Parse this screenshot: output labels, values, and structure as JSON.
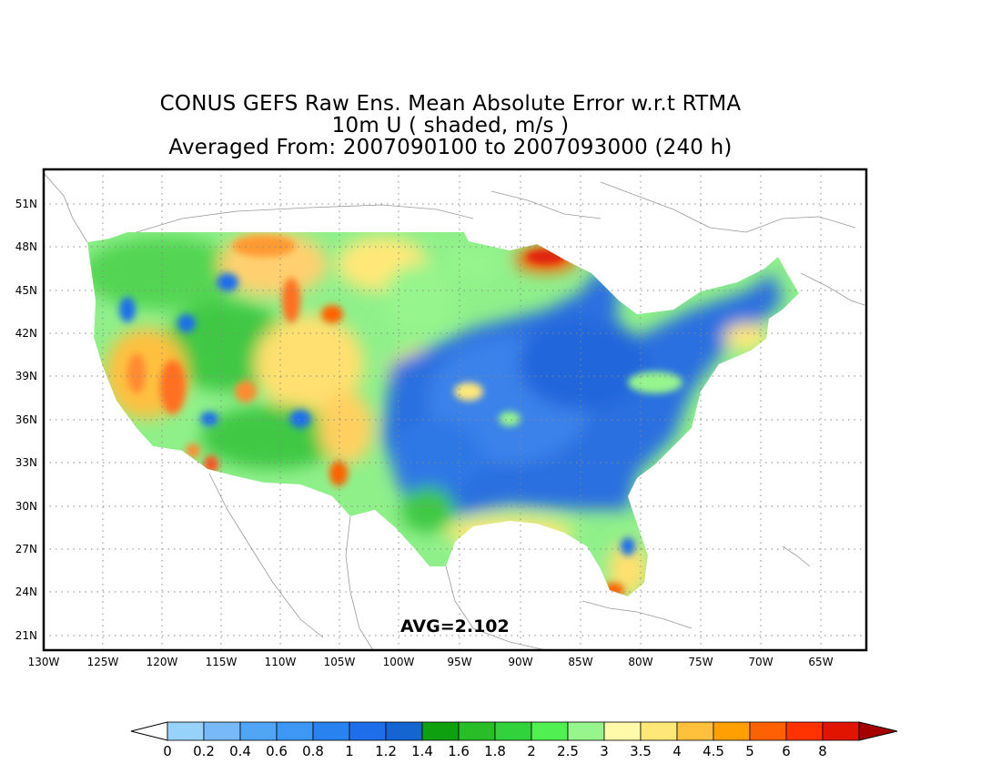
{
  "title": {
    "line1": "CONUS GEFS Raw Ens. Mean Absolute Error w.r.t RTMA",
    "line2": "10m U ( shaded, m/s )",
    "line3": "Averaged From: 2007090100 to 2007093000 (240 h)"
  },
  "map": {
    "region": "CONUS",
    "lon_range": [
      -130,
      -62
    ],
    "lat_range": [
      19.5,
      52.5
    ],
    "lon_ticks": [
      "130W",
      "125W",
      "120W",
      "115W",
      "110W",
      "105W",
      "100W",
      "95W",
      "90W",
      "85W",
      "80W",
      "75W",
      "70W",
      "65W"
    ],
    "lat_ticks": [
      "21N",
      "24N",
      "27N",
      "30N",
      "33N",
      "36N",
      "39N",
      "42N",
      "45N",
      "48N",
      "51N"
    ],
    "grid": "dotted",
    "annotation": "AVG=2.102"
  },
  "colorbar": {
    "labels": [
      "0",
      "0.2",
      "0.4",
      "0.6",
      "0.8",
      "1",
      "1.2",
      "1.4",
      "1.6",
      "1.8",
      "2",
      "2.5",
      "3",
      "3.5",
      "4",
      "4.5",
      "5",
      "6",
      "8"
    ],
    "colors": [
      "#96d2fa",
      "#78b9fa",
      "#50a5f5",
      "#3c97f5",
      "#2883f0",
      "#1e6eeb",
      "#1464d2",
      "#0fa00f",
      "#28be28",
      "#32d23c",
      "#50f050",
      "#96f58c",
      "#fffaaa",
      "#ffe878",
      "#ffc03c",
      "#ffa000",
      "#ff6000",
      "#ff3200",
      "#e11400"
    ],
    "over_color": "#a50000",
    "under_color": "#ffffff"
  },
  "palette": {
    "blue": "#2a6fe0",
    "green": "#2fbf35",
    "light_green": "#8ff08a",
    "yellow": "#ffe878",
    "orange": "#ffa000",
    "red": "#e62814"
  }
}
